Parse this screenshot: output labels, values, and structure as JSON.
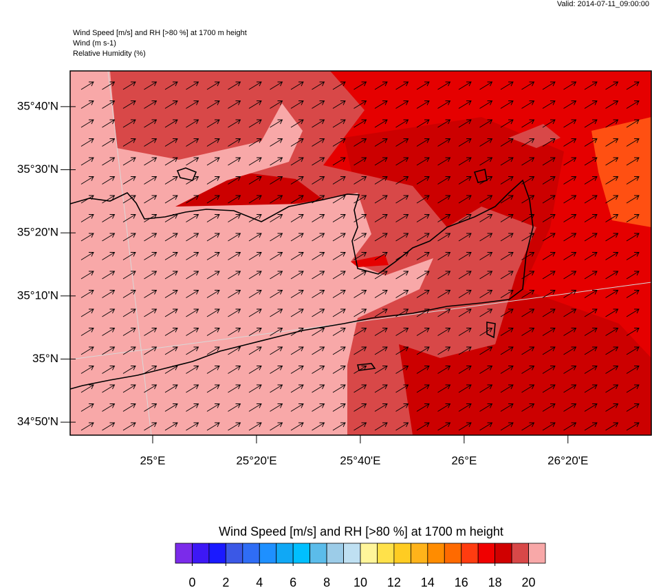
{
  "valid": "Valid: 2014-07-11_09:00:00",
  "header": {
    "lines": [
      "Wind Speed [m/s] and RH [>80 %] at 1700 m height",
      "Wind   (m s-1)",
      "Relative Humidity   (%)"
    ]
  },
  "map": {
    "xlim": [
      24.735,
      26.601
    ],
    "ylim": [
      34.799,
      35.761
    ],
    "xticks": [
      {
        "value": 25,
        "label": "25°E"
      },
      {
        "value": 25.3333,
        "label": "25°20'E"
      },
      {
        "value": 25.6667,
        "label": "25°40'E"
      },
      {
        "value": 26,
        "label": "26°E"
      },
      {
        "value": 26.3333,
        "label": "26°20'E"
      }
    ],
    "yticks": [
      {
        "value": 35.6667,
        "label": "35°40'N"
      },
      {
        "value": 35.5,
        "label": "35°30'N"
      },
      {
        "value": 35.3333,
        "label": "35°20'N"
      },
      {
        "value": 35.1667,
        "label": "35°10'N"
      },
      {
        "value": 35,
        "label": "35°N"
      },
      {
        "value": 34.8333,
        "label": "34°50'N"
      }
    ]
  },
  "colorbar": {
    "title": "Wind Speed [m/s] and RH [>80 %] at 1700 m height",
    "lim": [
      -1,
      21
    ],
    "ticks": [
      0,
      2,
      4,
      6,
      8,
      10,
      12,
      14,
      16,
      18,
      20
    ],
    "colors": [
      "#7b2bea",
      "#3d18f5",
      "#1a1aff",
      "#3b58e6",
      "#2f6df5",
      "#1e90ff",
      "#10a8f5",
      "#00bfff",
      "#5bbcea",
      "#9ccce8",
      "#bfe0f2",
      "#fff59a",
      "#ffe14a",
      "#ffcc22",
      "#ffb31a",
      "#ff8c00",
      "#ff6a00",
      "#ff3c10",
      "#f00000",
      "#d00000",
      "#d84848",
      "#f8a8a8"
    ]
  }
}
